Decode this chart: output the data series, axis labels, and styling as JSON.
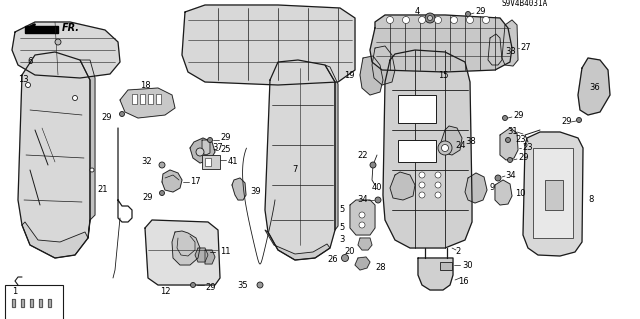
{
  "bg_color": "#ffffff",
  "diagram_code": "S9V4B4031A",
  "fig_width": 6.4,
  "fig_height": 3.19,
  "dpi": 100,
  "line_color": "#1a1a1a",
  "text_color": "#000000",
  "font_size": 6.0
}
